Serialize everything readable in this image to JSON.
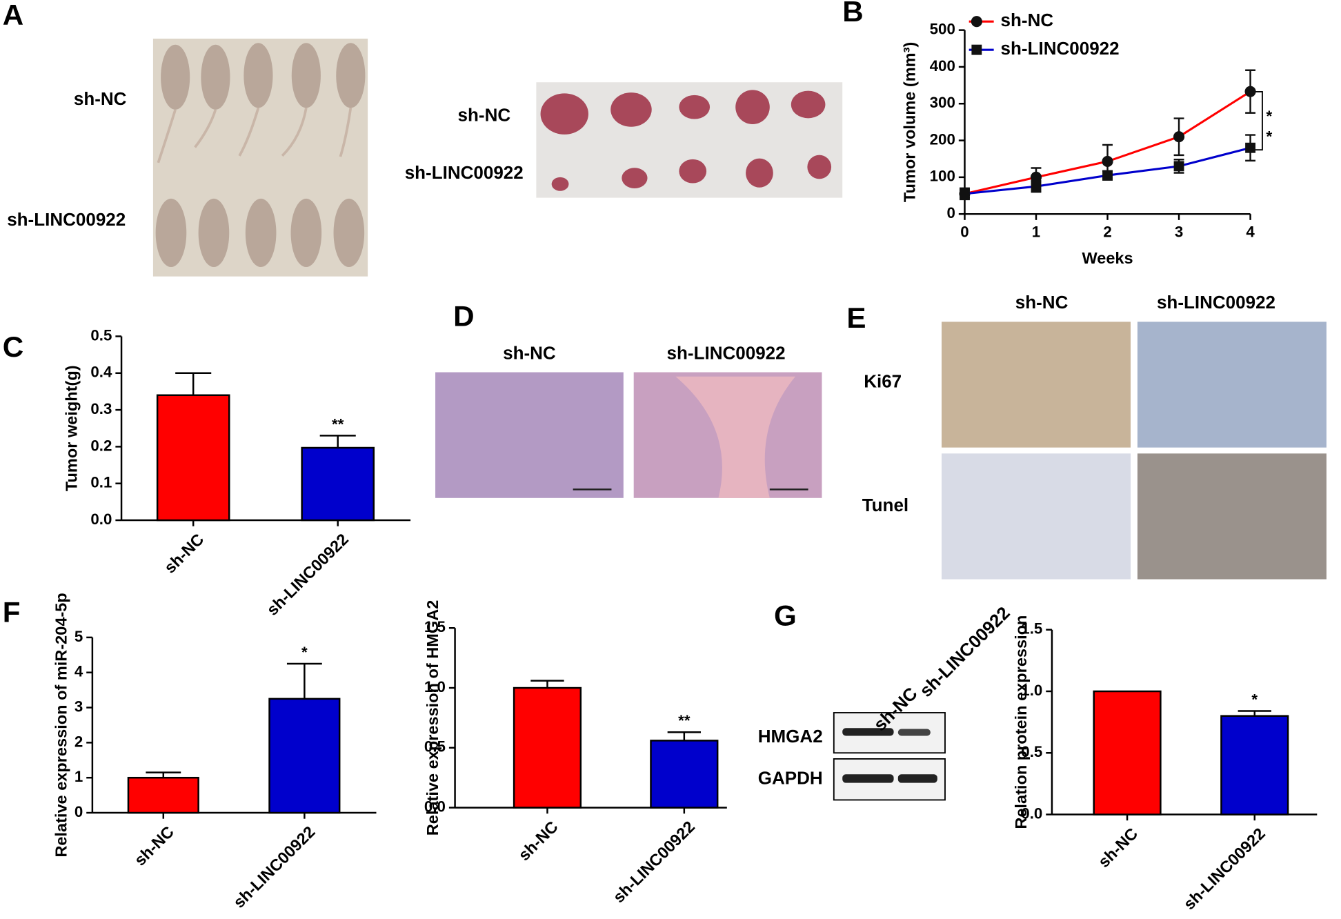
{
  "panel_letters": [
    "A",
    "B",
    "C",
    "D",
    "E",
    "F",
    "G"
  ],
  "panel_a": {
    "mice_labels": [
      "sh-NC",
      "sh-LINC00922"
    ],
    "tumor_labels": [
      "sh-NC",
      "sh-LINC00922"
    ]
  },
  "panel_d": {
    "column_labels": [
      "sh-NC",
      "sh-LINC00922"
    ]
  },
  "panel_e": {
    "column_labels": [
      "sh-NC",
      "sh-LINC00922"
    ],
    "row_labels": [
      "Ki67",
      "Tunel"
    ]
  },
  "panel_g_blot": {
    "lane_labels": [
      "sh-NC",
      "sh-LINC00922"
    ],
    "band_labels": [
      "HMGA2",
      "GAPDH"
    ]
  },
  "chart_data": [
    {
      "type": "line",
      "x": [
        0,
        1,
        2,
        3,
        4
      ],
      "xlim": [
        0,
        4
      ],
      "xticks": [
        0,
        1,
        2,
        3,
        4
      ],
      "ylim": [
        0,
        500
      ],
      "yticks": [
        0,
        100,
        200,
        300,
        400,
        500
      ],
      "xlabel": "Weeks",
      "ylabel": "Tumor volume (mm³)",
      "annotations": [
        "*",
        "*"
      ],
      "series": [
        {
          "name": "sh-NC",
          "color": "#ff0000",
          "marker": "circle",
          "values": [
            55,
            100,
            143,
            210,
            333
          ],
          "errors": [
            15,
            25,
            45,
            50,
            58
          ]
        },
        {
          "name": "sh-LINC00922",
          "color": "#0000cc",
          "marker": "square",
          "values": [
            55,
            75,
            105,
            130,
            180
          ],
          "errors": [
            10,
            15,
            12,
            18,
            35
          ]
        }
      ]
    },
    {
      "type": "bar",
      "categories": [
        "sh-NC",
        "sh-LINC00922"
      ],
      "values": [
        0.34,
        0.197
      ],
      "errors": [
        0.06,
        0.033
      ],
      "colors": [
        "#ff0000",
        "#0000cc"
      ],
      "ylim": [
        0,
        0.5
      ],
      "yticks": [
        {
          "value": 0,
          "label": "0.0"
        },
        0.1,
        0.2,
        0.3,
        0.4,
        0.5
      ],
      "ylabel": "Tumor weight(g)",
      "annotations": [
        "**"
      ]
    },
    {
      "type": "bar",
      "categories": [
        "sh-NC",
        "sh-LINC00922"
      ],
      "values": [
        1.0,
        3.25
      ],
      "errors": [
        0.15,
        1.0
      ],
      "colors": [
        "#ff0000",
        "#0000cc"
      ],
      "ylim": [
        0,
        5
      ],
      "yticks": [
        0,
        1,
        2,
        3,
        4,
        5
      ],
      "ylabel": "Relative expression of miR-204-5p",
      "annotations": [
        "*"
      ]
    },
    {
      "type": "bar",
      "categories": [
        "sh-NC",
        "sh-LINC00922"
      ],
      "values": [
        1.0,
        0.56
      ],
      "errors": [
        0.06,
        0.07
      ],
      "colors": [
        "#ff0000",
        "#0000cc"
      ],
      "ylim": [
        0,
        1.5
      ],
      "yticks": [
        {
          "value": 0,
          "label": "0.0"
        },
        0.5,
        {
          "value": 1,
          "label": "1.0"
        },
        1.5
      ],
      "ylabel": "Relative expression of HMGA2",
      "annotations": [
        "**"
      ]
    },
    {
      "type": "bar",
      "categories": [
        "sh-NC",
        "sh-LINC00922"
      ],
      "values": [
        1.0,
        0.8
      ],
      "errors": [
        0,
        0.04
      ],
      "colors": [
        "#ff0000",
        "#0000cc"
      ],
      "ylim": [
        0,
        1.5
      ],
      "yticks": [
        {
          "value": 0,
          "label": "0.0"
        },
        0.5,
        {
          "value": 1,
          "label": "1.0"
        },
        1.5
      ],
      "ylabel": "Relation protein expression",
      "annotations": [
        "*"
      ]
    }
  ]
}
